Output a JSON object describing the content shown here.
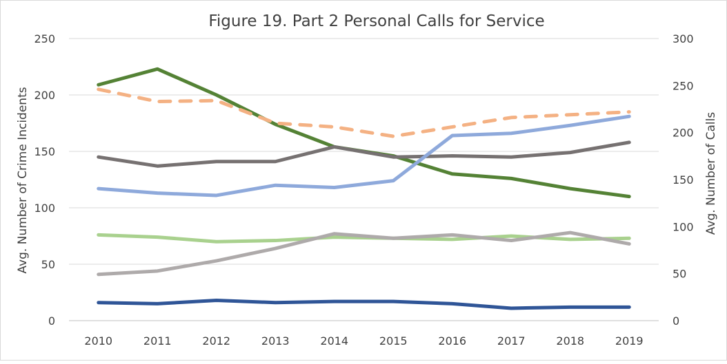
{
  "chart_data": {
    "type": "line",
    "title": "Figure 19. Part 2 Personal Calls for Service",
    "ylabel": "Avg. Number of Crime Incidents",
    "y2label": "Avg. Number of Calls",
    "ylim": [
      0,
      250
    ],
    "y2lim": [
      0,
      300
    ],
    "yticks": [
      "0",
      "50",
      "100",
      "150",
      "200",
      "250"
    ],
    "y2ticks": [
      "0",
      "50",
      "100",
      "150",
      "200",
      "250",
      "300"
    ],
    "categories": [
      "2010",
      "2011",
      "2012",
      "2013",
      "2014",
      "2015",
      "2016",
      "2017",
      "2018",
      "2019"
    ],
    "grid": true,
    "legend": "none",
    "series": [
      {
        "color": "#548235",
        "axis": "left",
        "dashed": false,
        "values": [
          209,
          223,
          200,
          174,
          154,
          146,
          130,
          126,
          117,
          110
        ]
      },
      {
        "color": "#F4B183",
        "axis": "right",
        "dashed": true,
        "values": [
          246,
          233,
          234,
          210,
          206,
          196,
          206,
          216,
          219,
          222
        ]
      },
      {
        "color": "#767171",
        "axis": "left",
        "dashed": false,
        "values": [
          145,
          137,
          141,
          141,
          154,
          145,
          146,
          145,
          149,
          158
        ]
      },
      {
        "color": "#8EA9DB",
        "axis": "left",
        "dashed": false,
        "values": [
          117,
          113,
          111,
          120,
          118,
          124,
          164,
          166,
          173,
          181
        ]
      },
      {
        "color": "#A9D18E",
        "axis": "left",
        "dashed": false,
        "values": [
          76,
          74,
          70,
          71,
          74,
          73,
          72,
          75,
          72,
          73
        ]
      },
      {
        "color": "#AEAAAA",
        "axis": "left",
        "dashed": false,
        "values": [
          41,
          44,
          53,
          64,
          77,
          73,
          76,
          71,
          78,
          68
        ]
      },
      {
        "color": "#2F5597",
        "axis": "left",
        "dashed": false,
        "values": [
          16,
          15,
          18,
          16,
          17,
          17,
          15,
          11,
          12,
          12
        ]
      }
    ]
  }
}
